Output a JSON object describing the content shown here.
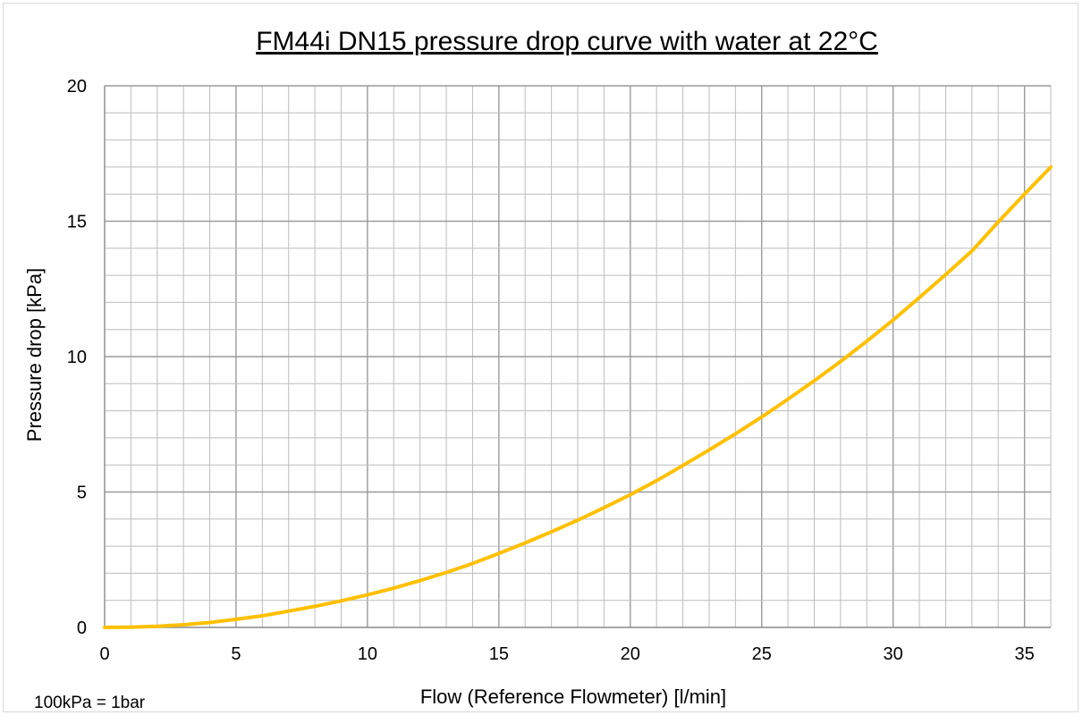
{
  "chart_data": {
    "type": "line",
    "title": "FM44i DN15 pressure drop curve with water at 22°C",
    "xlabel": "Flow (Reference Flowmeter) [l/min]",
    "ylabel": "Pressure drop [kPa]",
    "xlim": [
      0,
      36
    ],
    "ylim": [
      0,
      20
    ],
    "x_ticks": [
      0,
      5,
      10,
      15,
      20,
      25,
      30,
      35
    ],
    "y_ticks": [
      0,
      5,
      10,
      15,
      20
    ],
    "x_minor_step": 1,
    "y_minor_step": 1,
    "grid": true,
    "series": [
      {
        "color": "#FFC000",
        "x": [
          0,
          1,
          2,
          3,
          4,
          5,
          6,
          7,
          8,
          9,
          10,
          11,
          12,
          13,
          14,
          15,
          16,
          17,
          18,
          19,
          20,
          21,
          22,
          23,
          24,
          25,
          26,
          27,
          28,
          29,
          30,
          31,
          32,
          33,
          34,
          35,
          36
        ],
        "y": [
          0,
          0.01,
          0.04,
          0.1,
          0.18,
          0.3,
          0.43,
          0.6,
          0.78,
          0.98,
          1.2,
          1.45,
          1.73,
          2.03,
          2.36,
          2.73,
          3.12,
          3.53,
          3.96,
          4.42,
          4.9,
          5.42,
          5.98,
          6.55,
          7.15,
          7.77,
          8.43,
          9.11,
          9.82,
          10.57,
          11.35,
          12.18,
          13.03,
          13.9,
          14.97,
          16.0,
          17.0
        ]
      }
    ],
    "footnote": "100kPa = 1bar"
  }
}
